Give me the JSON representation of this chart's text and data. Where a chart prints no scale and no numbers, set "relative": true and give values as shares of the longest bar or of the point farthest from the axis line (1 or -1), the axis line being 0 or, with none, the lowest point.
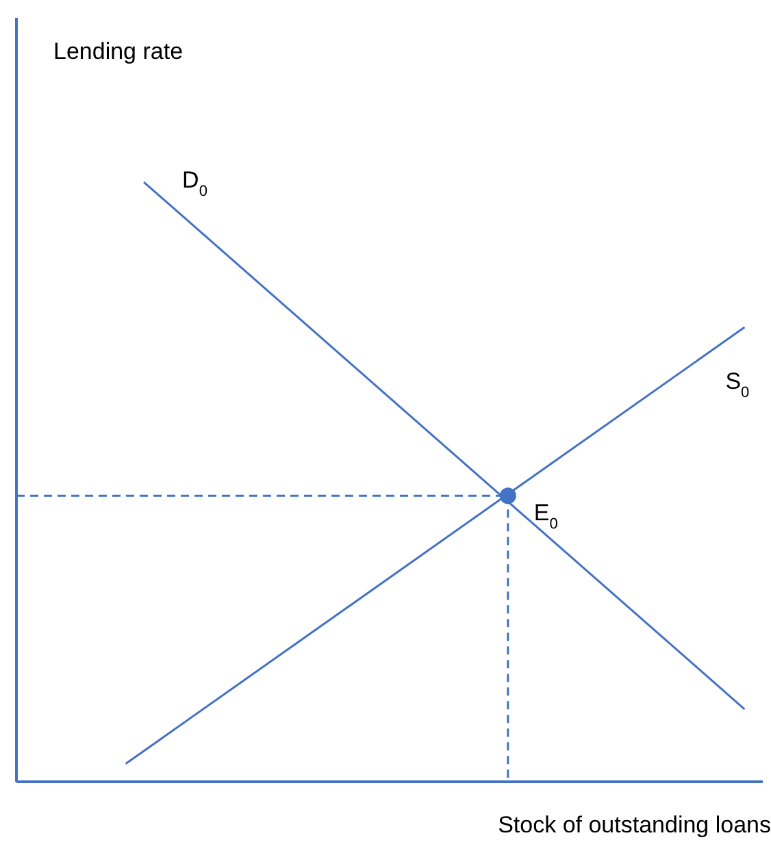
{
  "chart_data": {
    "type": "line",
    "xlabel": "Stock of outstanding loans",
    "relative": true,
    "categories": [
      null,
      null,
      null,
      null,
      null,
      null,
      null,
      null,
      null,
      null,
      null,
      null,
      null,
      null,
      null,
      null,
      null,
      null,
      null,
      null,
      null,
      null,
      null,
      null,
      null,
      null,
      null,
      null,
      null,
      null,
      null,
      null,
      null,
      null,
      null,
      null,
      null,
      null,
      null,
      null,
      null,
      null
    ],
    "series": [
      {
        "name": "D$_{0}$",
        "color": "#4472c4",
        "values": [
          null,
          null,
          null,
          null,
          null,
          null,
          null,
          1.0,
          null,
          null,
          null,
          null,
          null,
          null,
          null,
          null,
          null,
          null,
          null,
          null,
          null,
          null,
          null,
          null,
          null,
          null,
          null,
          null,
          null,
          null,
          null,
          null,
          null,
          null,
          null,
          null,
          null,
          null,
          null,
          null,
          0.121,
          null
        ]
      },
      {
        "name": "S$_{0}$",
        "color": "#4472c4",
        "values": [
          null,
          null,
          null,
          null,
          null,
          null,
          0.03,
          null,
          null,
          null,
          null,
          null,
          null,
          null,
          null,
          null,
          null,
          null,
          null,
          null,
          null,
          null,
          null,
          null,
          null,
          null,
          null,
          null,
          null,
          null,
          null,
          null,
          null,
          null,
          null,
          null,
          null,
          null,
          null,
          null,
          0.758,
          null
        ]
      },
      {
        "color": "#4472c4",
        "line_style": "dashed",
        "marker": "circle",
        "values": [
          0.477,
          null,
          null,
          null,
          null,
          null,
          null,
          null,
          null,
          null,
          null,
          null,
          null,
          null,
          null,
          null,
          null,
          null,
          null,
          null,
          null,
          null,
          null,
          null,
          null,
          null,
          null,
          0.477,
          null,
          null,
          null,
          null,
          null,
          null,
          null,
          null,
          null,
          null,
          null,
          null,
          null,
          null
        ]
      }
    ],
    "annotations": [
      "Lending rate",
      "E$_{0}$"
    ]
  }
}
